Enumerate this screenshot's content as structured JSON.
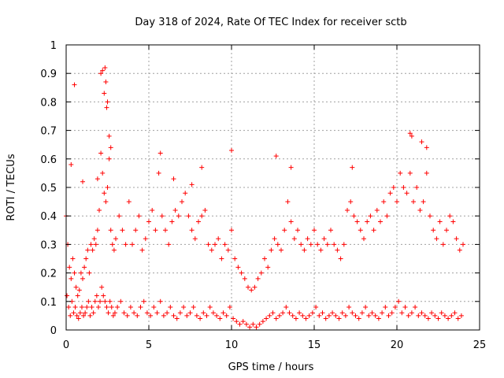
{
  "chart_data": {
    "type": "scatter",
    "title": "Day 318 of 2024, Rate Of TEC Index for receiver sctb",
    "xlabel": "GPS time / hours",
    "ylabel": "ROTI / TECUs",
    "xlim": [
      0,
      25
    ],
    "ylim": [
      0,
      1
    ],
    "xticks": [
      0,
      5,
      10,
      15,
      20,
      25
    ],
    "xtick_labels": [
      "0",
      "5",
      "10",
      "15",
      "20",
      "25"
    ],
    "yticks": [
      0,
      0.1,
      0.2,
      0.3,
      0.4,
      0.5,
      0.6,
      0.7,
      0.8,
      0.9,
      1
    ],
    "ytick_labels": [
      "0",
      "0.1",
      "0.2",
      "0.3",
      "0.4",
      "0.5",
      "0.6",
      "0.7",
      "0.8",
      "0.9",
      "1"
    ],
    "grid": true,
    "marker": "plus",
    "color": "#ff0000",
    "series": [
      {
        "x": [
          0.0,
          0.1,
          0.2,
          0.3,
          0.4,
          0.5,
          0.6,
          0.7,
          0.8,
          0.9,
          1.0,
          1.1,
          1.2,
          1.3,
          1.4,
          1.5,
          1.6,
          1.7,
          1.8,
          1.9,
          2.0,
          2.1,
          2.2,
          2.3,
          2.4,
          2.5,
          2.6,
          2.7,
          2.8,
          2.9,
          3.0,
          3.2,
          3.4,
          3.6,
          3.8,
          4.0,
          4.2,
          4.4,
          4.6,
          4.8,
          5.0,
          5.2,
          5.4,
          5.6,
          5.8,
          6.0,
          6.2,
          6.4,
          6.6,
          6.8,
          7.0,
          7.2,
          7.4,
          7.6,
          7.8,
          8.0,
          8.2,
          8.4,
          8.6,
          8.8,
          9.0,
          9.2,
          9.4,
          9.6,
          9.8,
          10.0,
          10.2,
          10.4,
          10.6,
          10.8,
          11.0,
          11.2,
          11.4,
          11.6,
          11.8,
          12.0,
          12.2,
          12.4,
          12.6,
          12.8,
          13.0,
          13.2,
          13.4,
          13.6,
          13.8,
          14.0,
          14.2,
          14.4,
          14.6,
          14.8,
          15.0,
          15.2,
          15.4,
          15.6,
          15.8,
          16.0,
          16.2,
          16.4,
          16.6,
          16.8,
          17.0,
          17.2,
          17.4,
          17.6,
          17.8,
          18.0,
          18.2,
          18.4,
          18.6,
          18.8,
          19.0,
          19.2,
          19.4,
          19.6,
          19.8,
          20.0,
          20.2,
          20.4,
          20.6,
          20.8,
          21.0,
          21.2,
          21.4,
          21.6,
          21.8,
          22.0,
          22.2,
          22.4,
          22.6,
          22.8,
          23.0,
          23.2,
          23.4,
          23.6,
          23.8,
          24.0,
          0.05,
          0.15,
          0.25,
          0.35,
          0.45,
          0.55,
          0.65,
          0.75,
          0.85,
          0.95,
          1.05,
          1.15,
          1.25,
          1.35,
          1.45,
          1.55,
          1.65,
          1.75,
          1.85,
          1.95,
          2.05,
          2.15,
          2.25,
          2.35,
          2.45,
          2.55,
          2.65,
          2.75,
          2.85,
          2.95,
          3.1,
          3.3,
          3.5,
          3.7,
          3.9,
          4.1,
          4.3,
          4.5,
          4.7,
          4.9,
          5.1,
          5.3,
          5.5,
          5.7,
          5.9,
          6.1,
          6.3,
          6.5,
          6.7,
          6.9,
          7.1,
          7.3,
          7.5,
          7.7,
          7.9,
          8.1,
          8.3,
          8.5,
          8.7,
          8.9,
          9.1,
          9.3,
          9.5,
          9.7,
          9.9,
          10.1,
          10.3,
          10.5,
          10.7,
          10.9,
          11.1,
          11.3,
          11.5,
          11.7,
          11.9,
          12.1,
          12.3,
          12.5,
          12.7,
          12.9,
          13.1,
          13.3,
          13.5,
          13.7,
          13.9,
          14.1,
          14.3,
          14.5,
          14.7,
          14.9,
          15.1,
          15.3,
          15.5,
          15.7,
          15.9,
          16.1,
          16.3,
          16.5,
          16.7,
          16.9,
          17.1,
          17.3,
          17.5,
          17.7,
          17.9,
          18.1,
          18.3,
          18.5,
          18.7,
          18.9,
          19.1,
          19.3,
          19.5,
          19.7,
          19.9,
          20.1,
          20.3,
          20.5,
          20.7,
          20.9,
          21.1,
          21.3,
          21.5,
          21.7,
          21.9,
          22.1,
          22.3,
          22.5,
          22.7,
          22.9,
          23.1,
          23.3,
          23.5,
          23.7,
          23.9,
          0.5,
          2.1,
          2.2,
          2.3,
          2.35,
          2.4,
          2.45,
          2.5,
          2.6,
          2.7,
          10.0,
          12.7,
          13.6,
          17.3,
          20.8,
          20.9,
          21.5,
          21.8,
          5.7,
          8.2,
          0.3,
          1.9,
          1.0,
          6.5,
          7.6
        ],
        "y": [
          0.4,
          0.3,
          0.22,
          0.18,
          0.25,
          0.2,
          0.15,
          0.12,
          0.14,
          0.2,
          0.18,
          0.22,
          0.25,
          0.28,
          0.2,
          0.3,
          0.28,
          0.32,
          0.3,
          0.35,
          0.42,
          0.62,
          0.55,
          0.48,
          0.45,
          0.5,
          0.6,
          0.35,
          0.3,
          0.28,
          0.32,
          0.4,
          0.35,
          0.3,
          0.45,
          0.3,
          0.35,
          0.4,
          0.28,
          0.32,
          0.38,
          0.42,
          0.35,
          0.55,
          0.4,
          0.35,
          0.3,
          0.38,
          0.42,
          0.4,
          0.45,
          0.48,
          0.4,
          0.35,
          0.32,
          0.38,
          0.4,
          0.42,
          0.3,
          0.28,
          0.3,
          0.32,
          0.25,
          0.3,
          0.28,
          0.35,
          0.25,
          0.22,
          0.2,
          0.18,
          0.15,
          0.14,
          0.15,
          0.18,
          0.2,
          0.25,
          0.22,
          0.28,
          0.32,
          0.3,
          0.28,
          0.35,
          0.45,
          0.38,
          0.32,
          0.35,
          0.3,
          0.28,
          0.32,
          0.3,
          0.35,
          0.3,
          0.28,
          0.32,
          0.3,
          0.35,
          0.3,
          0.28,
          0.25,
          0.3,
          0.42,
          0.45,
          0.4,
          0.38,
          0.35,
          0.32,
          0.38,
          0.4,
          0.35,
          0.42,
          0.38,
          0.45,
          0.4,
          0.48,
          0.5,
          0.45,
          0.55,
          0.5,
          0.48,
          0.55,
          0.45,
          0.5,
          0.42,
          0.45,
          0.55,
          0.4,
          0.35,
          0.32,
          0.38,
          0.3,
          0.35,
          0.4,
          0.38,
          0.32,
          0.28,
          0.3,
          0.12,
          0.08,
          0.05,
          0.1,
          0.06,
          0.08,
          0.05,
          0.04,
          0.06,
          0.08,
          0.05,
          0.06,
          0.08,
          0.1,
          0.05,
          0.08,
          0.06,
          0.1,
          0.12,
          0.08,
          0.1,
          0.15,
          0.12,
          0.1,
          0.08,
          0.06,
          0.1,
          0.08,
          0.05,
          0.06,
          0.08,
          0.1,
          0.06,
          0.05,
          0.08,
          0.06,
          0.05,
          0.08,
          0.1,
          0.06,
          0.05,
          0.08,
          0.06,
          0.1,
          0.05,
          0.06,
          0.08,
          0.05,
          0.04,
          0.06,
          0.08,
          0.05,
          0.06,
          0.08,
          0.05,
          0.04,
          0.06,
          0.05,
          0.08,
          0.06,
          0.05,
          0.04,
          0.06,
          0.05,
          0.08,
          0.04,
          0.03,
          0.02,
          0.03,
          0.02,
          0.01,
          0.02,
          0.01,
          0.02,
          0.03,
          0.04,
          0.05,
          0.06,
          0.04,
          0.05,
          0.06,
          0.08,
          0.06,
          0.05,
          0.04,
          0.06,
          0.05,
          0.04,
          0.05,
          0.06,
          0.08,
          0.05,
          0.06,
          0.04,
          0.05,
          0.06,
          0.05,
          0.04,
          0.06,
          0.05,
          0.08,
          0.06,
          0.05,
          0.04,
          0.06,
          0.08,
          0.05,
          0.06,
          0.05,
          0.04,
          0.06,
          0.08,
          0.05,
          0.06,
          0.08,
          0.1,
          0.06,
          0.08,
          0.05,
          0.06,
          0.08,
          0.05,
          0.06,
          0.05,
          0.04,
          0.06,
          0.05,
          0.04,
          0.06,
          0.05,
          0.04,
          0.05,
          0.06,
          0.04,
          0.05,
          0.86,
          0.9,
          0.91,
          0.83,
          0.92,
          0.87,
          0.78,
          0.8,
          0.68,
          0.64,
          0.63,
          0.61,
          0.57,
          0.57,
          0.69,
          0.68,
          0.66,
          0.64,
          0.62,
          0.57,
          0.58,
          0.53,
          0.52,
          0.53,
          0.51
        ]
      }
    ]
  }
}
